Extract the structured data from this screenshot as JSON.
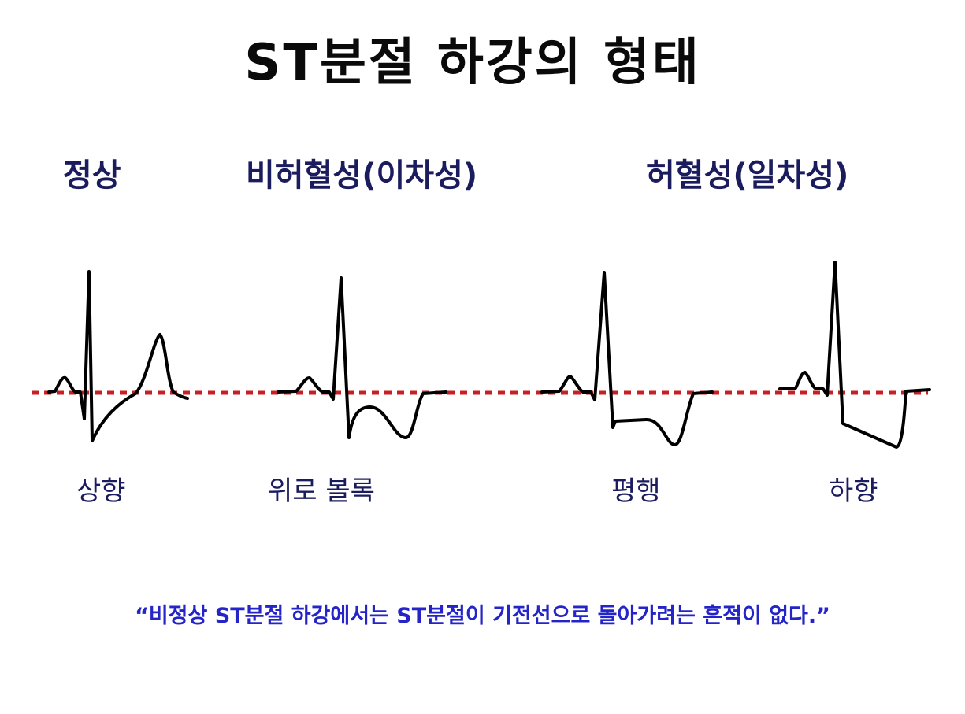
{
  "title": "ST분절 하강의 형태",
  "categories": {
    "normal": "정상",
    "non_ischemic": "비허혈성(이차성)",
    "ischemic": "허혈성(일차성)"
  },
  "waveforms": [
    {
      "id": "upsloping",
      "label": "상향"
    },
    {
      "id": "convex",
      "label": "위로 볼록"
    },
    {
      "id": "horizontal",
      "label": "평행"
    },
    {
      "id": "downsloping",
      "label": "하향"
    }
  ],
  "caption": "“비정상 ST분절 하강에서는 ST분절이 기전선으로 돌아가려는 흔적이 없다.”",
  "colors": {
    "title": "#0a0a0a",
    "category_heading": "#1b1c5e",
    "waveform_label": "#1b1c5e",
    "caption": "#2424c8",
    "baseline": "#c91f24",
    "trace": "#000000"
  }
}
